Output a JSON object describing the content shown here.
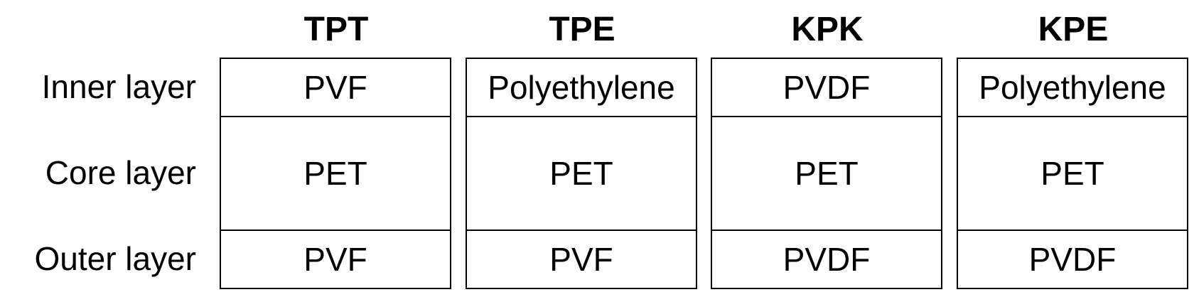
{
  "rows": {
    "inner": "Inner layer",
    "core": "Core layer",
    "outer": "Outer layer"
  },
  "columns": [
    {
      "title": "TPT",
      "inner": "PVF",
      "core": "PET",
      "outer": "PVF"
    },
    {
      "title": "TPE",
      "inner": "Polyethylene",
      "core": "PET",
      "outer": "PVF"
    },
    {
      "title": "KPK",
      "inner": "PVDF",
      "core": "PET",
      "outer": "PVDF"
    },
    {
      "title": "KPE",
      "inner": "Polyethylene",
      "core": "PET",
      "outer": "PVDF"
    }
  ]
}
